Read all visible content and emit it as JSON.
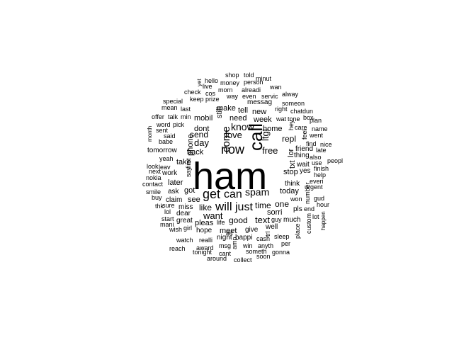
{
  "color": "#000000",
  "words": [
    "ham",
    "call",
    "now",
    "get",
    "can",
    "will",
    "just",
    "spam",
    "know",
    "come",
    "ltgt",
    "love",
    "free",
    "time",
    "text",
    "good",
    "want",
    "day",
    "send",
    "like",
    "one",
    "sorri",
    "home",
    "today",
    "stop",
    "repl",
    "txt",
    "lor",
    "week",
    "need",
    "tell",
    "new",
    "still",
    "make",
    "mobil",
    "dont",
    "back",
    "phone",
    "take",
    "later",
    "got",
    "see",
    "pleas",
    "hope",
    "meet",
    "give",
    "well",
    "guy",
    "much",
    "won",
    "pls",
    "thing",
    "wait",
    "yes",
    "also",
    "friend",
    "feel",
    "think",
    "messag",
    "right",
    "hey",
    "wat",
    "tone",
    "chatdun",
    "care",
    "dear",
    "miss",
    "great",
    "life",
    "let",
    "happi",
    "night",
    "realli",
    "award",
    "msg",
    "cant",
    "amp",
    "anyth",
    "win",
    "sleep",
    "per",
    "cash",
    "trl",
    "someth",
    "gonna",
    "soon",
    "collect",
    "around",
    "tonight",
    "watch",
    "reach",
    "start",
    "girl",
    "wish",
    "mani",
    "lol",
    "sure",
    "thk",
    "buy",
    "claim",
    "ask",
    "smile",
    "contact",
    "nokia",
    "next",
    "leav",
    "look",
    "yeah",
    "say",
    "first",
    "work",
    "tomorrow",
    "babe",
    "said",
    "sent",
    "pick",
    "word",
    "month",
    "offer",
    "talk",
    "min",
    "mean",
    "special",
    "last",
    "check",
    "keep",
    "prize",
    "cos",
    "live",
    "yet",
    "hello",
    "money",
    "morn",
    "way",
    "alreadi",
    "even",
    "servic",
    "alway",
    "someon",
    "wan",
    "minut",
    "person",
    "told",
    "shop",
    "plan",
    "name",
    "late",
    "nice",
    "went",
    "box",
    "find",
    "use",
    "peopl",
    "finish",
    "everi",
    "gud",
    "urgent",
    "hour",
    "help",
    "lot",
    "place",
    "custom",
    "happen",
    "end",
    "number"
  ]
}
